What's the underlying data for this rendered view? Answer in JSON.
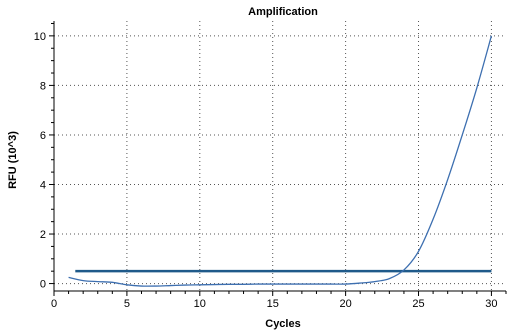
{
  "chart_data": {
    "type": "line",
    "title": "Amplification",
    "xlabel": "Cycles",
    "ylabel": "RFU (10^3)",
    "xlim": [
      0,
      31
    ],
    "ylim": [
      -0.3,
      10.6
    ],
    "x_ticks": [
      0,
      5,
      10,
      15,
      20,
      25,
      30
    ],
    "y_ticks": [
      0,
      2,
      4,
      6,
      8,
      10
    ],
    "grid": true,
    "colors": {
      "curve": "#3d6fb0",
      "threshold": "#1f5a8a"
    },
    "series": [
      {
        "x": [
          1,
          2,
          3,
          4,
          5,
          6,
          7,
          8,
          9,
          10,
          11,
          12,
          13,
          14,
          15,
          16,
          17,
          18,
          19,
          20,
          21,
          22,
          23,
          24,
          25,
          26,
          27,
          28,
          29,
          30
        ],
        "values": [
          0.25,
          0.12,
          0.08,
          0.05,
          -0.05,
          -0.1,
          -0.1,
          -0.08,
          -0.06,
          -0.05,
          -0.04,
          -0.03,
          -0.03,
          -0.02,
          -0.02,
          -0.02,
          -0.02,
          -0.02,
          -0.02,
          -0.02,
          0.02,
          0.08,
          0.2,
          0.55,
          1.3,
          2.6,
          4.2,
          6.0,
          7.9,
          10.0
        ]
      }
    ],
    "threshold": {
      "y": 0.5,
      "x_start": 0.5,
      "x_end": 30
    }
  }
}
